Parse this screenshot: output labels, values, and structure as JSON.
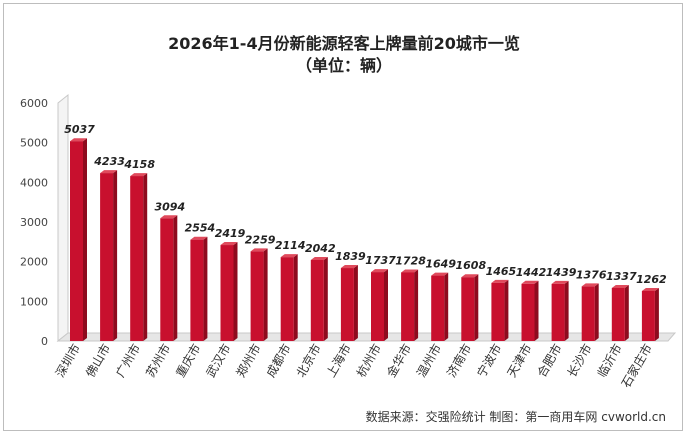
{
  "chart_data": {
    "type": "bar",
    "title": "2026年1-4月份新能源轻客上牌量前20城市一览",
    "subtitle": "（单位：辆）",
    "categories": [
      "深圳市",
      "佛山市",
      "广州市",
      "苏州市",
      "重庆市",
      "武汉市",
      "郑州市",
      "成都市",
      "北京市",
      "上海市",
      "杭州市",
      "金华市",
      "温州市",
      "济南市",
      "宁波市",
      "天津市",
      "合肥市",
      "长沙市",
      "临沂市",
      "石家庄市"
    ],
    "values": [
      5037,
      4233,
      4158,
      3094,
      2554,
      2419,
      2259,
      2114,
      2042,
      1839,
      1737,
      1728,
      1649,
      1608,
      1465,
      1442,
      1439,
      1376,
      1337,
      1262
    ],
    "value_labels": [
      "5037",
      "4233",
      "4158",
      "3094",
      "2554",
      "2419",
      "2259",
      "2114",
      "2042",
      "1839",
      "1737",
      "1728",
      "1649",
      "1608",
      "1465",
      "1442",
      "1439",
      "1376",
      "1337",
      "1262"
    ],
    "y_ticks": [
      "0",
      "1000",
      "2000",
      "3000",
      "4000",
      "5000",
      "6000"
    ],
    "ylim": [
      0,
      6000
    ],
    "grid": false,
    "legend": "none",
    "bar_color": "#c8102e",
    "xlabel": "",
    "ylabel": ""
  },
  "source_note": "数据来源：交强险统计 制图：第一商用车网 cvworld.cn"
}
